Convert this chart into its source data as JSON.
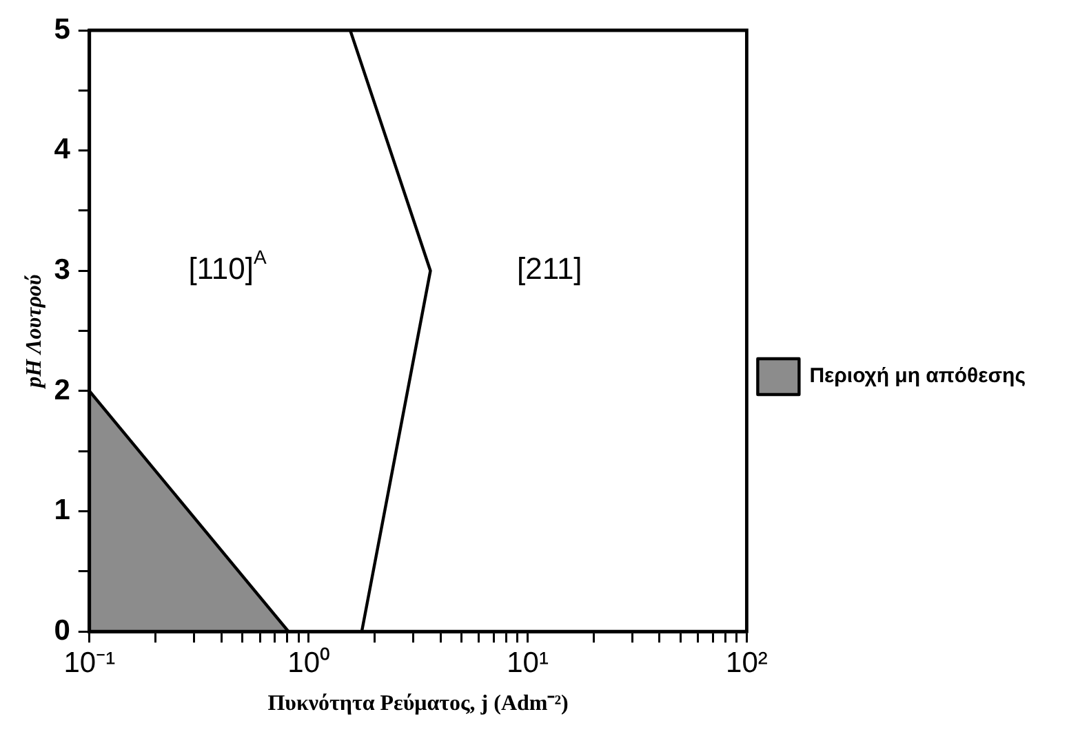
{
  "chart_data": {
    "type": "line",
    "xlabel": "Πυκνότητα Ρεύματος, j (Adm⁻²)",
    "ylabel": "pH Λουτρού",
    "log": "x",
    "xlim": [
      0.1,
      100
    ],
    "ylim": [
      0,
      5
    ],
    "xticks": [
      {
        "value": 0.1,
        "label": "10⁻¹"
      },
      {
        "value": 0.2,
        "label": null
      },
      {
        "value": 0.3,
        "label": null
      },
      {
        "value": 0.4,
        "label": null
      },
      {
        "value": 0.5,
        "label": null
      },
      {
        "value": 0.6,
        "label": null
      },
      {
        "value": 0.7,
        "label": null
      },
      {
        "value": 0.8,
        "label": null
      },
      {
        "value": 0.9,
        "label": null
      },
      {
        "value": 1,
        "label": "10⁰"
      },
      {
        "value": 2,
        "label": null
      },
      {
        "value": 3,
        "label": null
      },
      {
        "value": 4,
        "label": null
      },
      {
        "value": 5,
        "label": null
      },
      {
        "value": 6,
        "label": null
      },
      {
        "value": 7,
        "label": null
      },
      {
        "value": 8,
        "label": null
      },
      {
        "value": 9,
        "label": null
      },
      {
        "value": 10,
        "label": "10¹"
      },
      {
        "value": 20,
        "label": null
      },
      {
        "value": 30,
        "label": null
      },
      {
        "value": 40,
        "label": null
      },
      {
        "value": 50,
        "label": null
      },
      {
        "value": 60,
        "label": null
      },
      {
        "value": 70,
        "label": null
      },
      {
        "value": 80,
        "label": null
      },
      {
        "value": 90,
        "label": null
      },
      {
        "value": 100,
        "label": "10²"
      }
    ],
    "yticks": [
      0,
      {
        "value": 0.5,
        "label": null
      },
      1,
      {
        "value": 1.5,
        "label": null
      },
      2,
      {
        "value": 2.5,
        "label": null
      },
      3,
      {
        "value": 3.5,
        "label": null
      },
      4,
      {
        "value": 4.5,
        "label": null
      },
      5
    ],
    "grid": false,
    "legend": "right",
    "marker": "none",
    "line_style": "solid",
    "series": [
      {
        "type": "line",
        "color": "#000000",
        "x": [
          1.55,
          3.6,
          1.75
        ],
        "values": [
          5,
          3,
          0
        ]
      },
      {
        "type": "area",
        "name": "Περιοχή μη απόθεσης",
        "color": "#000000",
        "x": [
          0.1,
          0.81
        ],
        "values": [
          2,
          0
        ]
      }
    ],
    "annotations": [
      "[110]$^{A}$",
      "[211]"
    ]
  }
}
